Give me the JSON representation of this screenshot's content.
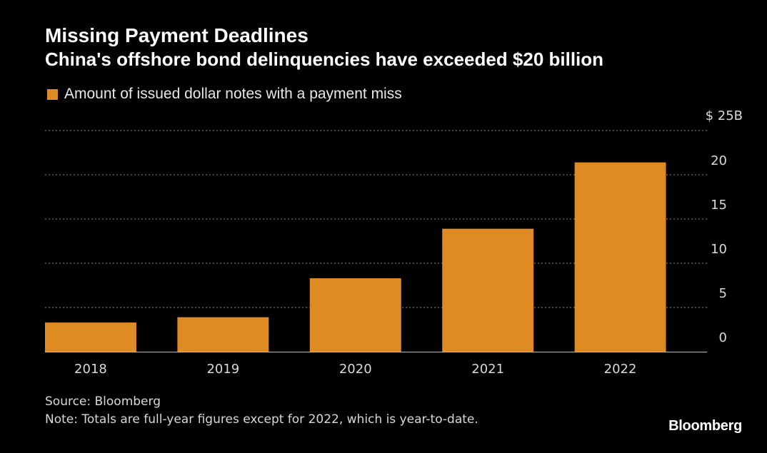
{
  "title": "Missing Payment Deadlines",
  "subtitle": "China's offshore bond delinquencies have exceeded $20 billion",
  "footer": {
    "source": "Source: Bloomberg",
    "note": "Note: Totals are full-year figures except for 2022, which is year-to-date."
  },
  "logo": "Bloomberg",
  "colors": {
    "background": "#000000",
    "bar": "#dd8b22",
    "gridline": "#8a8a8a",
    "axis_text": "#d9d9d9"
  },
  "chart_data": {
    "type": "bar",
    "title": "Missing Payment Deadlines",
    "subtitle": "China's offshore bond delinquencies have exceeded $20 billion",
    "categories": [
      "2018",
      "2019",
      "2020",
      "2021",
      "2022"
    ],
    "series": [
      {
        "name": "Amount of issued dollar notes with a payment miss",
        "values": [
          3.3,
          3.9,
          8.3,
          13.9,
          21.4
        ]
      }
    ],
    "ylim": [
      0,
      25
    ],
    "yticks": [
      0,
      5,
      10,
      15,
      20,
      25
    ],
    "ytick_labels": [
      "0",
      "5",
      "10",
      "15",
      "20",
      "$ 25B"
    ],
    "y_axis_side": "right",
    "grid": true,
    "grid_style": "dotted",
    "legend_position": "top-left",
    "xlabel": "",
    "ylabel": ""
  }
}
